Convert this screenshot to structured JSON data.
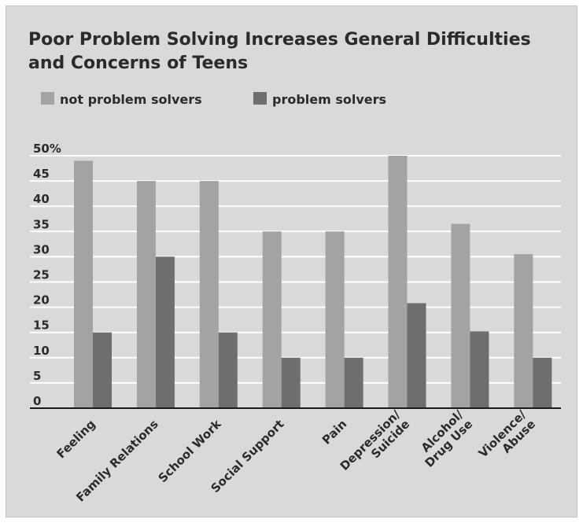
{
  "chart_data": {
    "type": "bar",
    "title_lines": [
      "Poor Problem Solving Increases General Difficulties",
      "and Concerns of Teens"
    ],
    "categories": [
      [
        "Feeling"
      ],
      [
        "Family Relations"
      ],
      [
        "School Work"
      ],
      [
        "Social Support"
      ],
      [
        "Pain"
      ],
      [
        "Depression/",
        "Suicide"
      ],
      [
        "Alcohol/",
        "Drug Use"
      ],
      [
        "Violence/",
        "Abuse"
      ]
    ],
    "series": [
      {
        "name": "not problem solvers",
        "color": "#a3a3a3",
        "values": [
          49,
          45,
          45,
          35,
          35,
          50,
          36.5,
          30.5
        ]
      },
      {
        "name": "problem solvers",
        "color": "#6e6e70",
        "values": [
          15,
          30,
          15,
          10,
          10,
          20.8,
          15.2,
          10
        ]
      }
    ],
    "y_ticks": [
      {
        "value": 0,
        "label": "0"
      },
      {
        "value": 5,
        "label": "5"
      },
      {
        "value": 10,
        "label": "10"
      },
      {
        "value": 15,
        "label": "15"
      },
      {
        "value": 20,
        "label": "20"
      },
      {
        "value": 25,
        "label": "25"
      },
      {
        "value": 30,
        "label": "30"
      },
      {
        "value": 35,
        "label": "35"
      },
      {
        "value": 40,
        "label": "40"
      },
      {
        "value": 45,
        "label": "45"
      },
      {
        "value": 50,
        "label": "50%"
      }
    ],
    "ylim": [
      0,
      50
    ],
    "grid": true,
    "legend_position": "top-left"
  }
}
